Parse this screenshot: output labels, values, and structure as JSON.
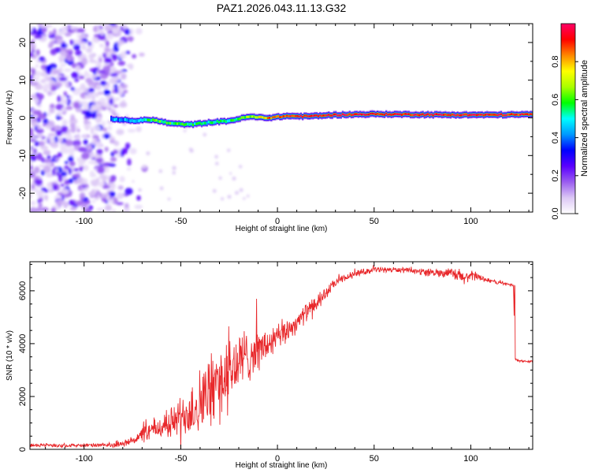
{
  "title": "PAZ1.2026.043.11.13.G32",
  "chart_data": [
    {
      "type": "heatmap",
      "title": "PAZ1.2026.043.11.13.G32",
      "xlabel": "Height of straight line (km)",
      "ylabel": "Frequency (Hz)",
      "xlim": [
        -128,
        132
      ],
      "ylim": [
        -25,
        25
      ],
      "xticks": [
        -100,
        -50,
        0,
        50,
        100
      ],
      "yticks": [
        -20,
        -10,
        0,
        10,
        20
      ],
      "colorbar": {
        "label": "Normalized spectral amplitude",
        "range": [
          0,
          1
        ],
        "ticks": [
          0.0,
          0.2,
          0.4,
          0.6,
          0.8
        ],
        "colors": [
          "#ffffff",
          "#dcc8f5",
          "#9a5cf0",
          "#5a00ff",
          "#0000ff",
          "#0099ff",
          "#00ffff",
          "#00ff00",
          "#aaff00",
          "#ffff00",
          "#ff8800",
          "#ff0000",
          "#ff0066"
        ]
      },
      "ridge": {
        "description": "Narrow high-amplitude band near 0 Hz",
        "x": [
          -85,
          -75,
          -65,
          -55,
          -45,
          -35,
          -25,
          -15,
          -5,
          5,
          15,
          30,
          50,
          70,
          90,
          110,
          132
        ],
        "frequency": [
          -0.3,
          -0.8,
          -0.5,
          -1.5,
          -1.8,
          -1.2,
          -0.8,
          0.3,
          0.0,
          0.5,
          0.4,
          0.8,
          1.0,
          0.9,
          0.8,
          0.8,
          0.9
        ],
        "amplitude": [
          0.42,
          0.45,
          0.6,
          0.58,
          0.55,
          0.5,
          0.55,
          0.65,
          0.85,
          0.9,
          0.95,
          0.95,
          0.95,
          0.92,
          0.95,
          0.95,
          0.9
        ]
      },
      "noise_region": {
        "x_range": [
          -128,
          -75
        ],
        "frequency_range": [
          -25,
          25
        ],
        "amplitude": [
          0.05,
          0.3
        ]
      }
    },
    {
      "type": "line",
      "xlabel": "Height of straight line (km)",
      "ylabel": "SNR (10 * v/v)",
      "xlim": [
        -128,
        132
      ],
      "ylim": [
        0,
        7100
      ],
      "xticks": [
        -100,
        -50,
        0,
        50,
        100
      ],
      "yticks": [
        0,
        2000,
        4000,
        6000
      ],
      "color": "#e8282b",
      "series": [
        {
          "name": "SNR",
          "x": [
            -128,
            -100,
            -85,
            -78,
            -72,
            -66,
            -60,
            -55,
            -50,
            -45,
            -40,
            -35,
            -30,
            -25,
            -20,
            -15,
            -10,
            -5,
            0,
            5,
            10,
            15,
            20,
            25,
            30,
            40,
            50,
            60,
            70,
            80,
            90,
            95,
            100,
            105,
            110,
            115,
            122,
            123,
            125,
            132
          ],
          "values": [
            150,
            150,
            160,
            250,
            450,
            700,
            850,
            1000,
            1250,
            1500,
            1800,
            2200,
            2600,
            2900,
            3300,
            3550,
            3750,
            3950,
            4200,
            4500,
            4800,
            5200,
            5500,
            5900,
            6300,
            6650,
            6800,
            6800,
            6750,
            6700,
            6650,
            6500,
            6550,
            6500,
            6380,
            6300,
            6200,
            3400,
            3350,
            3320
          ],
          "noise": [
            80,
            80,
            90,
            150,
            300,
            450,
            600,
            700,
            900,
            1300,
            1500,
            1600,
            1700,
            1700,
            1500,
            1200,
            900,
            800,
            700,
            550,
            450,
            400,
            350,
            300,
            200,
            150,
            120,
            120,
            120,
            150,
            250,
            400,
            250,
            150,
            100,
            80,
            60,
            60,
            50,
            50
          ]
        }
      ]
    }
  ]
}
